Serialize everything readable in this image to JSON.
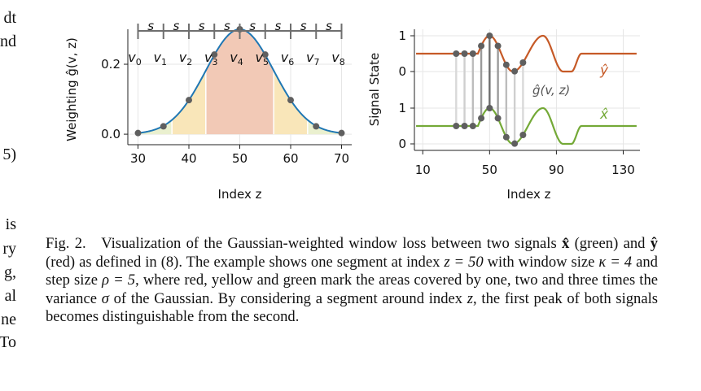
{
  "margin_fragments": [
    "dt",
    "nd",
    "5)",
    "is",
    "ry",
    "g,",
    "al",
    "ne",
    "To"
  ],
  "caption": {
    "prefix": "Fig. 2.",
    "t1": "Visualization of the Gaussian-weighted window loss between two signals",
    "sym_x": "x̂",
    "t2": "(green) and",
    "sym_y": "ŷ",
    "t3": "(red) as defined in (8). The example shows one segment at index",
    "z_eq": "z = 50",
    "t4": "with window size",
    "kappa_eq": "κ = 4",
    "t5": "and step size",
    "rho_eq": "ρ = 5",
    "t6": ", where red, yellow and green mark the areas covered by one, two and three times the variance",
    "sigma": "σ",
    "t7": "of the Gaussian. By considering a segment around index",
    "z": "z",
    "t8": ", the first peak of both signals becomes distinguishable from the second."
  },
  "chart_data": [
    {
      "type": "area",
      "xlabel": "Index z",
      "ylabel": "Weighting ĝ(v, z)",
      "xlim": [
        28,
        72
      ],
      "ylim": [
        -0.03,
        0.3
      ],
      "xticks": [
        30,
        40,
        50,
        60,
        70
      ],
      "yticks": [
        0.0,
        0.2
      ],
      "ytick_labels": [
        "0.0",
        "0.2"
      ],
      "grid": true,
      "curve": {
        "mean": 50,
        "sigma": 6.67,
        "peak": 0.3,
        "color": "#1f77b4"
      },
      "bands": [
        {
          "from": 43.33,
          "to": 56.67,
          "color": "#f2c9b6"
        },
        {
          "from": 36.67,
          "to": 43.33,
          "color": "#f9e6b9"
        },
        {
          "from": 56.67,
          "to": 63.33,
          "color": "#f9e6b9"
        },
        {
          "from": 30,
          "to": 36.67,
          "color": "#eaf0cf"
        },
        {
          "from": 63.33,
          "to": 70,
          "color": "#eaf0cf"
        }
      ],
      "points_x": [
        30,
        35,
        40,
        45,
        50,
        55,
        60,
        65,
        70
      ],
      "points_y": [
        0.0033,
        0.0225,
        0.0974,
        0.2276,
        0.3,
        0.2276,
        0.0974,
        0.0225,
        0.0033
      ],
      "segment_labels": [
        "v0",
        "v1",
        "v2",
        "v3",
        "v4",
        "v5",
        "v6",
        "v7",
        "v8"
      ],
      "step_label": "s"
    },
    {
      "type": "line",
      "xlabel": "Index z",
      "ylabel": "Signal State",
      "xlim": [
        5,
        140
      ],
      "xticks": [
        10,
        50,
        90,
        130
      ],
      "grid": true,
      "series": [
        {
          "name": "ŷ",
          "color": "#c65a27",
          "yticks": [
            0,
            1
          ]
        },
        {
          "name": "x̂",
          "color": "#74a937",
          "yticks": [
            0,
            1
          ]
        }
      ],
      "annotation": "ĝ(v, z)",
      "sample_x": [
        30,
        35,
        40,
        45,
        50,
        55,
        60,
        65,
        70
      ]
    }
  ]
}
